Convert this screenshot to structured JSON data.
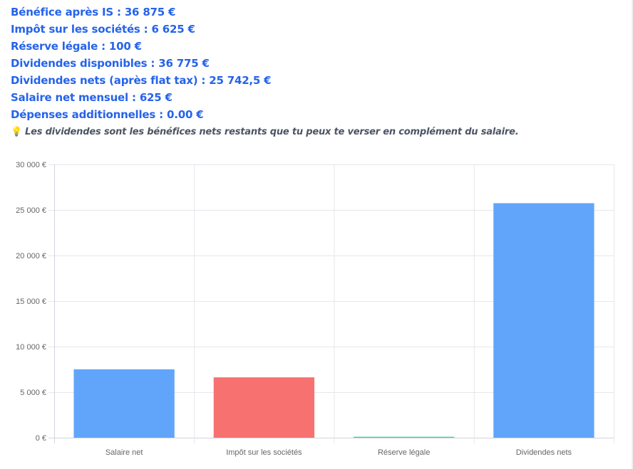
{
  "summary": {
    "lines": [
      "Bénéfice après IS : 36 875 €",
      "Impôt sur les sociétés : 6 625 €",
      "Réserve légale : 100 €",
      "Dividendes disponibles : 36 775 €",
      "Dividendes nets (après flat tax) : 25 742,5 €",
      "Salaire net mensuel : 625 €",
      "Dépenses additionnelles : 0.00 €"
    ],
    "note_icon": "💡",
    "note_icon_name": "lightbulb-icon",
    "note": "Les dividendes sont les bénéfices nets restants que tu peux te verser en complément du salaire.",
    "text_color": "#2563eb"
  },
  "chart_data": {
    "type": "bar",
    "categories": [
      "Salaire net",
      "Impôt sur les sociétés",
      "Réserve légale",
      "Dividendes nets"
    ],
    "values": [
      7500,
      6625,
      100,
      25742.5
    ],
    "colors": [
      "#60a5fa",
      "#f87171",
      "#34d399",
      "#60a5fa"
    ],
    "ylim": [
      0,
      30000
    ],
    "yticks": [
      0,
      5000,
      10000,
      15000,
      20000,
      25000,
      30000
    ],
    "ytick_labels": [
      "0 €",
      "5 000 €",
      "10 000 €",
      "15 000 €",
      "20 000 €",
      "25 000 €",
      "30 000 €"
    ],
    "grid": true,
    "legend": "none",
    "title": "",
    "xlabel": "",
    "ylabel": ""
  }
}
